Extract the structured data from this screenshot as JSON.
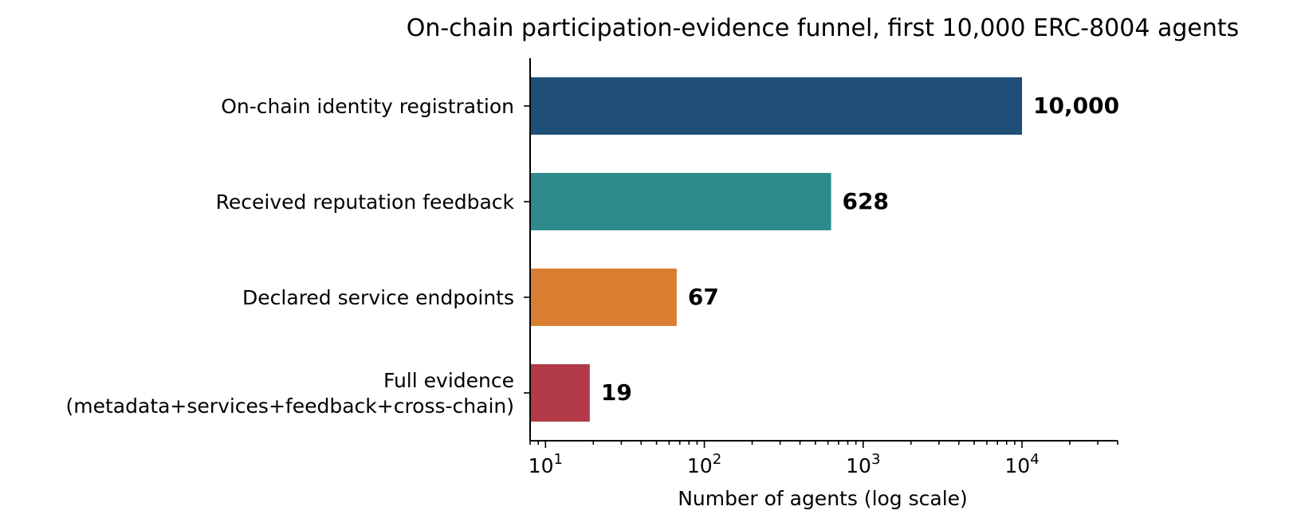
{
  "chart_data": {
    "type": "bar",
    "orientation": "horizontal",
    "title": "On-chain participation-evidence funnel, first 10,000 ERC-8004 agents",
    "xlabel": "Number of agents (log scale)",
    "ylabel": "",
    "x_scale": "log",
    "xlim": [
      8,
      40000
    ],
    "x_ticks": [
      {
        "value": 10,
        "base": "10",
        "exp": "1"
      },
      {
        "value": 100,
        "base": "10",
        "exp": "2"
      },
      {
        "value": 1000,
        "base": "10",
        "exp": "3"
      },
      {
        "value": 10000,
        "base": "10",
        "exp": "4"
      }
    ],
    "categories": [
      [
        "On-chain identity registration"
      ],
      [
        "Received reputation feedback"
      ],
      [
        "Declared service endpoints"
      ],
      [
        "Full evidence",
        "(metadata+services+feedback+cross-chain)"
      ]
    ],
    "values": [
      10000,
      628,
      67,
      19
    ],
    "value_labels": [
      "10,000",
      "628",
      "67",
      "19"
    ],
    "colors": [
      "#1f4e79",
      "#2e8b8b",
      "#d97d31",
      "#b23a48"
    ],
    "grid": false,
    "legend": "none"
  }
}
